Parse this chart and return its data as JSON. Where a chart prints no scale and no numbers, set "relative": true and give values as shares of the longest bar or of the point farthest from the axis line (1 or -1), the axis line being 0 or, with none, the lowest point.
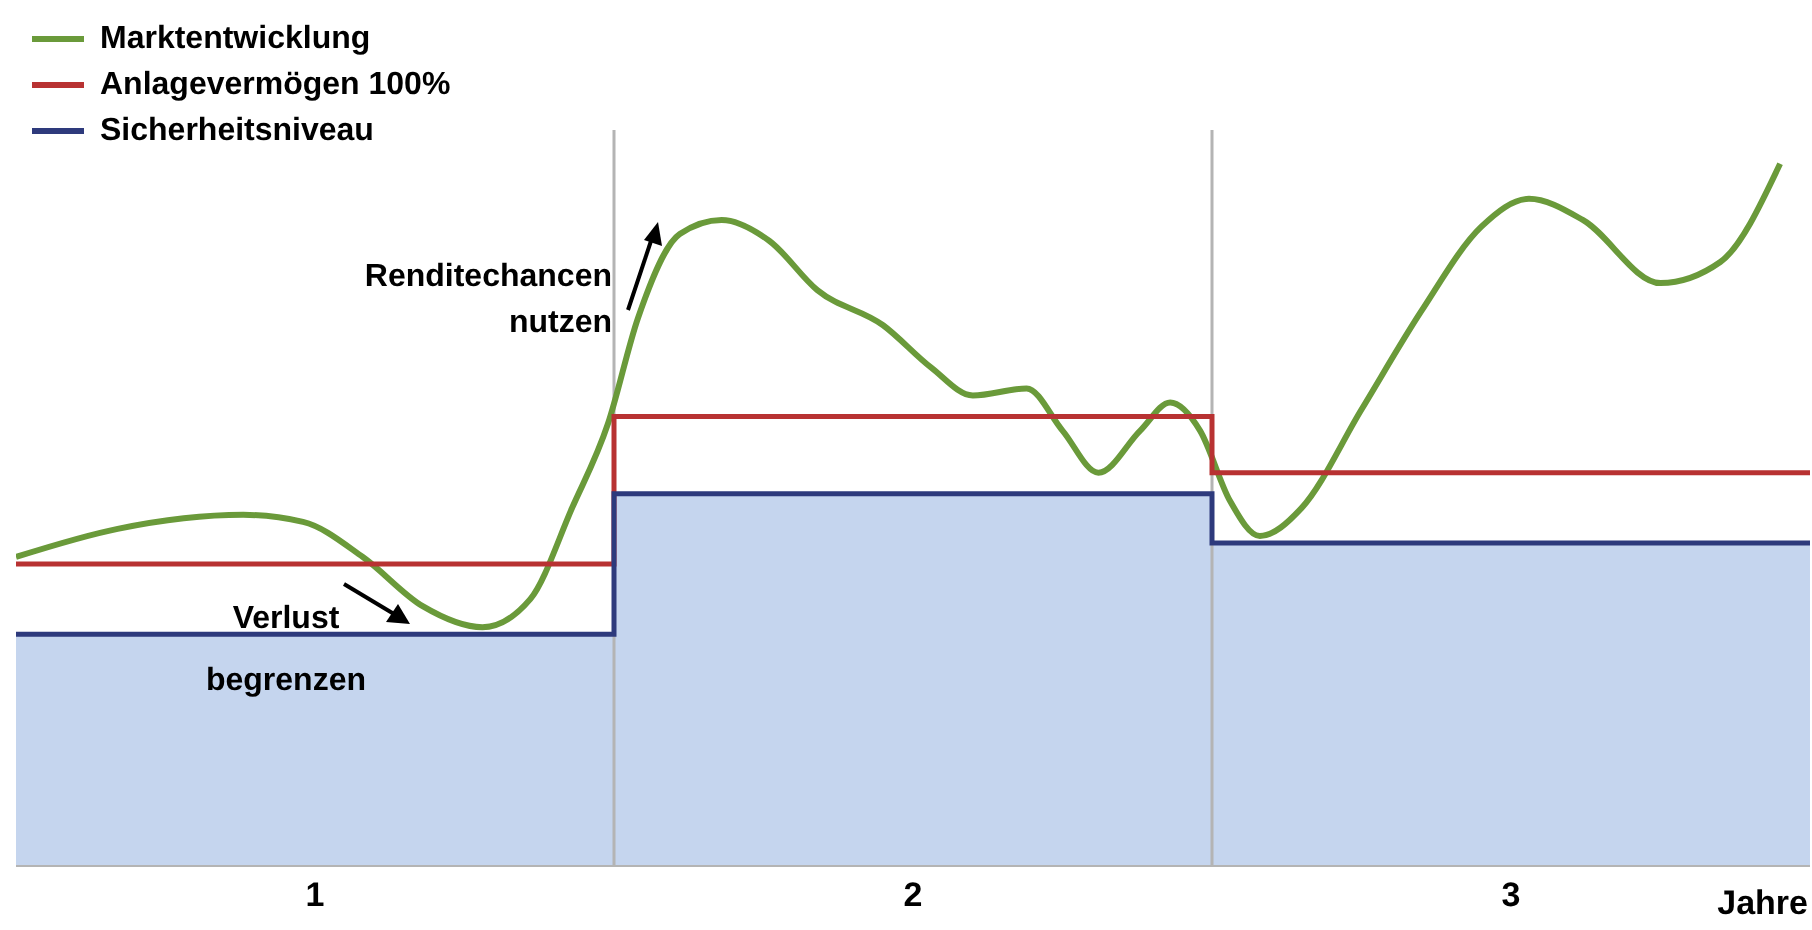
{
  "chart_data": {
    "type": "line",
    "relative": true,
    "xlabel": "Jahre",
    "xlim": [
      0,
      3
    ],
    "xticks": [
      {
        "value": 0.5,
        "label": "1"
      },
      {
        "value": 1.5,
        "label": "2"
      },
      {
        "value": 2.5,
        "label": "3"
      }
    ],
    "legend": "top left",
    "marker": "none",
    "ref_lines": [
      {
        "axis": "x",
        "value": 1,
        "color": "#b4b4b4"
      },
      {
        "axis": "x",
        "value": 2,
        "color": "#b4b4b4"
      }
    ],
    "annotations": [
      "Renditechancen nutzen",
      "Verlust begrenzen"
    ],
    "series": [
      {
        "name": "Marktentwicklung",
        "color": "#6a9a3a",
        "x": [
          0,
          0.17,
          0.38,
          0.48,
          0.58,
          0.68,
          0.78,
          0.86,
          0.93,
          0.99,
          1.04,
          1.11,
          1.18,
          1.26,
          1.34,
          1.45,
          1.53,
          1.6,
          1.69,
          1.75,
          1.81,
          1.88,
          1.93,
          1.98,
          2.03,
          2.08,
          2.15,
          2.25,
          2.35,
          2.45,
          2.53,
          2.62,
          2.75,
          2.85,
          2.95
        ],
        "values": [
          0.44,
          0.48,
          0.5,
          0.49,
          0.44,
          0.37,
          0.34,
          0.38,
          0.51,
          0.63,
          0.78,
          0.9,
          0.92,
          0.89,
          0.82,
          0.77,
          0.71,
          0.67,
          0.68,
          0.62,
          0.56,
          0.62,
          0.66,
          0.62,
          0.52,
          0.47,
          0.51,
          0.65,
          0.79,
          0.91,
          0.95,
          0.92,
          0.83,
          0.86,
          1
        ]
      },
      {
        "name": "Anlagevermögen 100%",
        "type": "step",
        "color": "#b83232",
        "x": [
          0,
          1,
          2,
          3
        ],
        "values": [
          0.43,
          0.64,
          0.56,
          0.56
        ]
      },
      {
        "type": "area",
        "color": "#c5d5ee",
        "x": [
          0,
          1,
          2,
          3
        ],
        "values": [
          0.33,
          0.53,
          0.46,
          0.46
        ]
      },
      {
        "name": "Sicherheitsniveau",
        "type": "step",
        "color": "#2e3a7c",
        "x": [
          0,
          1,
          2,
          3
        ],
        "values": [
          0.33,
          0.53,
          0.46,
          0.46
        ]
      }
    ]
  }
}
